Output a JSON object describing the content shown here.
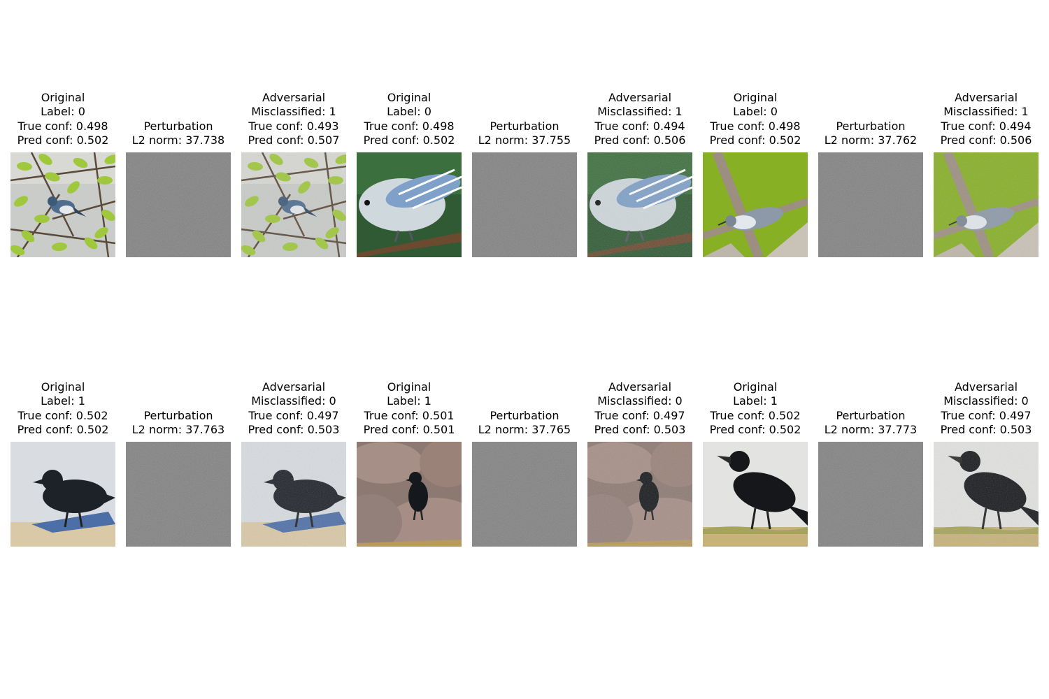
{
  "panels": [
    {
      "kind": "original",
      "lines": [
        "Original",
        "Label: 0",
        "True conf: 0.498",
        "Pred conf: 0.502"
      ],
      "subject": "warbler-branch"
    },
    {
      "kind": "perturbation",
      "lines": [
        "Perturbation",
        "L2 norm: 37.738"
      ],
      "subject": "noise"
    },
    {
      "kind": "adversarial",
      "lines": [
        "Adversarial",
        "Misclassified: 1",
        "True conf: 0.493",
        "Pred conf: 0.507"
      ],
      "subject": "warbler-branch"
    },
    {
      "kind": "original",
      "lines": [
        "Original",
        "Label: 0",
        "True conf: 0.498",
        "Pred conf: 0.502"
      ],
      "subject": "warbler-closeup"
    },
    {
      "kind": "perturbation",
      "lines": [
        "Perturbation",
        "L2 norm: 37.755"
      ],
      "subject": "noise"
    },
    {
      "kind": "adversarial",
      "lines": [
        "Adversarial",
        "Misclassified: 1",
        "True conf: 0.494",
        "Pred conf: 0.506"
      ],
      "subject": "warbler-closeup"
    },
    {
      "kind": "original",
      "lines": [
        "Original",
        "Label: 0",
        "True conf: 0.498",
        "Pred conf: 0.502"
      ],
      "subject": "warbler-green"
    },
    {
      "kind": "perturbation",
      "lines": [
        "Perturbation",
        "L2 norm: 37.762"
      ],
      "subject": "noise"
    },
    {
      "kind": "adversarial",
      "lines": [
        "Adversarial",
        "Misclassified: 1",
        "True conf: 0.494",
        "Pred conf: 0.506"
      ],
      "subject": "warbler-green"
    },
    {
      "kind": "original",
      "lines": [
        "Original",
        "Label: 1",
        "True conf: 0.502",
        "Pred conf: 0.502"
      ],
      "subject": "crow-beach"
    },
    {
      "kind": "perturbation",
      "lines": [
        "Perturbation",
        "L2 norm: 37.763"
      ],
      "subject": "noise"
    },
    {
      "kind": "adversarial",
      "lines": [
        "Adversarial",
        "Misclassified: 0",
        "True conf: 0.497",
        "Pred conf: 0.503"
      ],
      "subject": "crow-beach"
    },
    {
      "kind": "original",
      "lines": [
        "Original",
        "Label: 1",
        "True conf: 0.501",
        "Pred conf: 0.501"
      ],
      "subject": "crow-rocks"
    },
    {
      "kind": "perturbation",
      "lines": [
        "Perturbation",
        "L2 norm: 37.765"
      ],
      "subject": "noise"
    },
    {
      "kind": "adversarial",
      "lines": [
        "Adversarial",
        "Misclassified: 0",
        "True conf: 0.497",
        "Pred conf: 0.503"
      ],
      "subject": "crow-rocks"
    },
    {
      "kind": "original",
      "lines": [
        "Original",
        "Label: 1",
        "True conf: 0.502",
        "Pred conf: 0.502"
      ],
      "subject": "crow-grass"
    },
    {
      "kind": "perturbation",
      "lines": [
        "Perturbation",
        "L2 norm: 37.773"
      ],
      "subject": "noise"
    },
    {
      "kind": "adversarial",
      "lines": [
        "Adversarial",
        "Misclassified: 0",
        "True conf: 0.497",
        "Pred conf: 0.503"
      ],
      "subject": "crow-grass"
    }
  ]
}
